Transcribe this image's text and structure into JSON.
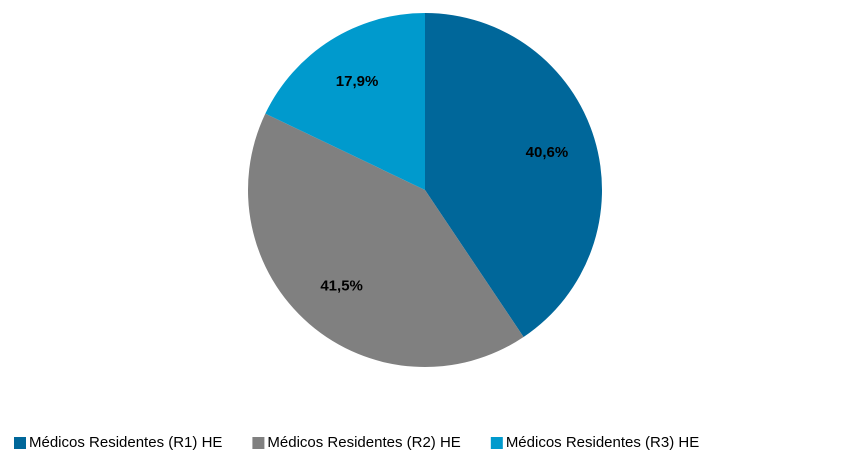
{
  "chart_data": {
    "type": "pie",
    "categories": [
      "Médicos Residentes (R1) HE",
      "Médicos Residentes (R2) HE",
      "Médicos Residentes (R3) HE"
    ],
    "values": [
      40.6,
      41.5,
      17.9
    ],
    "value_labels": [
      "40,6%",
      "41,5%",
      "17,9%"
    ],
    "colors": [
      "#00679a",
      "#808080",
      "#009acd"
    ],
    "legend": "bottom"
  }
}
